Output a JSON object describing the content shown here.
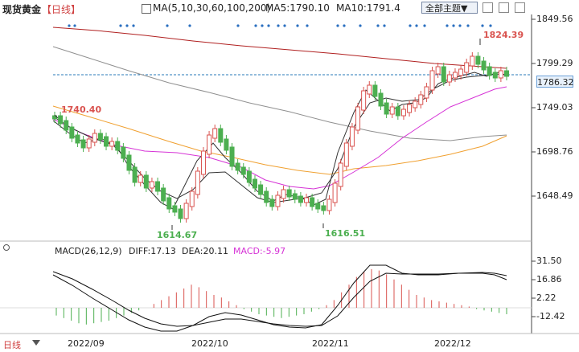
{
  "header": {
    "title": "现货黄金",
    "period": "【日线】",
    "ma_label": "MA(5,10,30,60,100,200)",
    "ma5": "MA5:1790.10",
    "ma10": "MA10:1791.4",
    "theme_button": "全部主题▼"
  },
  "main_chart": {
    "y_ticks": [
      "1849.56",
      "1799.29",
      "1749.03",
      "1698.76",
      "1648.49"
    ],
    "current_price": "1786.32",
    "annotations": [
      "1824.39",
      "1740.40",
      "1614.67",
      "1616.51"
    ]
  },
  "macd": {
    "label": "MACD(26,12,9)",
    "diff": "DIFF:17.13",
    "dea": "DEA:20.11",
    "macd": "MACD:-5.97",
    "y_ticks": [
      "31.50",
      "16.86",
      "2.22",
      "-12.42"
    ]
  },
  "x_axis": [
    "2022/09",
    "2022/10",
    "2022/11",
    "2022/12"
  ],
  "footer": {
    "mode": "日线"
  },
  "colors": {
    "up": "#d9534f",
    "down": "#4caf50",
    "ma_magenta": "#d633d6",
    "ma_orange": "#f0a030",
    "ma_gray": "#909090",
    "ma_red": "#b02020",
    "price_line": "#2a7ab8"
  }
}
